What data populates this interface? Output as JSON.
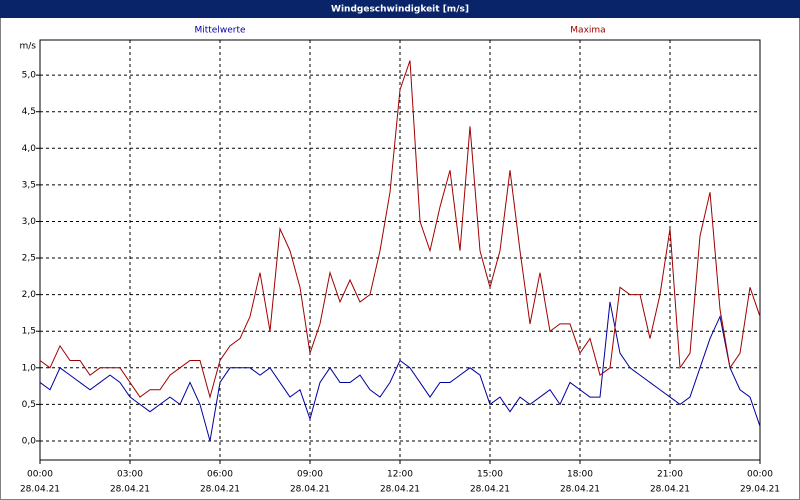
{
  "chart_data": {
    "type": "line",
    "title": "Windgeschwindigkeit [m/s]",
    "y_label": "m/s",
    "x": [
      0,
      20,
      40,
      60,
      80,
      100,
      120,
      140,
      160,
      180,
      200,
      220,
      240,
      260,
      280,
      300,
      320,
      340,
      360,
      380,
      400,
      420,
      440,
      460,
      480,
      500,
      520,
      540,
      560,
      580,
      600,
      620,
      640,
      660,
      680,
      700,
      720,
      740,
      760,
      780,
      800,
      820,
      840,
      860,
      880,
      900,
      920,
      940,
      960,
      980,
      1000,
      1020,
      1040,
      1060,
      1080,
      1100,
      1120,
      1140,
      1160,
      1180,
      1200,
      1220,
      1240,
      1260,
      1280,
      1300,
      1320,
      1340,
      1360,
      1380,
      1400,
      1420,
      1440
    ],
    "series": [
      {
        "name": "Mittelwerte",
        "color": "#0000a0",
        "values": [
          0.8,
          0.7,
          1.0,
          0.9,
          0.8,
          0.7,
          0.8,
          0.9,
          0.8,
          0.6,
          0.5,
          0.4,
          0.5,
          0.6,
          0.5,
          0.8,
          0.5,
          0.0,
          0.8,
          1.0,
          1.0,
          1.0,
          0.9,
          1.0,
          0.8,
          0.6,
          0.7,
          0.3,
          0.8,
          1.0,
          0.8,
          0.8,
          0.9,
          0.7,
          0.6,
          0.8,
          1.1,
          1.0,
          0.8,
          0.6,
          0.8,
          0.8,
          0.9,
          1.0,
          0.9,
          0.5,
          0.6,
          0.4,
          0.6,
          0.5,
          0.6,
          0.7,
          0.5,
          0.8,
          0.7,
          0.6,
          0.6,
          1.9,
          1.2,
          1.0,
          0.9,
          0.8,
          0.7,
          0.6,
          0.5,
          0.6,
          1.0,
          1.4,
          1.7,
          1.0,
          0.7,
          0.6,
          0.2
        ]
      },
      {
        "name": "Maxima",
        "color": "#a00000",
        "values": [
          1.1,
          1.0,
          1.3,
          1.1,
          1.1,
          0.9,
          1.0,
          1.0,
          1.0,
          0.8,
          0.6,
          0.7,
          0.7,
          0.9,
          1.0,
          1.1,
          1.1,
          0.6,
          1.1,
          1.3,
          1.4,
          1.7,
          2.3,
          1.5,
          2.9,
          2.6,
          2.1,
          1.2,
          1.6,
          2.3,
          1.9,
          2.2,
          1.9,
          2.0,
          2.6,
          3.4,
          4.8,
          5.2,
          3.0,
          2.6,
          3.2,
          3.7,
          2.6,
          4.3,
          2.6,
          2.1,
          2.6,
          3.7,
          2.6,
          1.6,
          2.3,
          1.5,
          1.6,
          1.6,
          1.2,
          1.4,
          0.9,
          1.0,
          2.1,
          2.0,
          2.0,
          1.4,
          2.0,
          2.9,
          1.0,
          1.2,
          2.8,
          3.4,
          1.8,
          1.0,
          1.2,
          2.1,
          1.7
        ]
      }
    ],
    "xlim": [
      0,
      1440
    ],
    "xticks": [
      {
        "value": 0,
        "label": "00:00"
      },
      {
        "value": 180,
        "label": "03:00"
      },
      {
        "value": 360,
        "label": "06:00"
      },
      {
        "value": 540,
        "label": "09:00"
      },
      {
        "value": 720,
        "label": "12:00"
      },
      {
        "value": 900,
        "label": "15:00"
      },
      {
        "value": 1080,
        "label": "18:00"
      },
      {
        "value": 1260,
        "label": "21:00"
      },
      {
        "value": 1440,
        "label": "00:00"
      }
    ],
    "xtick_dates": [
      "28.04.21",
      "28.04.21",
      "28.04.21",
      "28.04.21",
      "28.04.21",
      "28.04.21",
      "28.04.21",
      "28.04.21",
      "29.04.21"
    ],
    "ylim": [
      -0.26,
      5.48
    ],
    "yticks": [
      {
        "value": 0,
        "label": "0,0"
      },
      {
        "value": 0.5,
        "label": "0,5"
      },
      {
        "value": 1,
        "label": "1,0"
      },
      {
        "value": 1.5,
        "label": "1,5"
      },
      {
        "value": 2,
        "label": "2,0"
      },
      {
        "value": 2.5,
        "label": "2,5"
      },
      {
        "value": 3,
        "label": "3,0"
      },
      {
        "value": 3.5,
        "label": "3,5"
      },
      {
        "value": 4,
        "label": "4,0"
      },
      {
        "value": 4.5,
        "label": "4,5"
      },
      {
        "value": 5,
        "label": "5,0"
      }
    ],
    "grid": true
  }
}
